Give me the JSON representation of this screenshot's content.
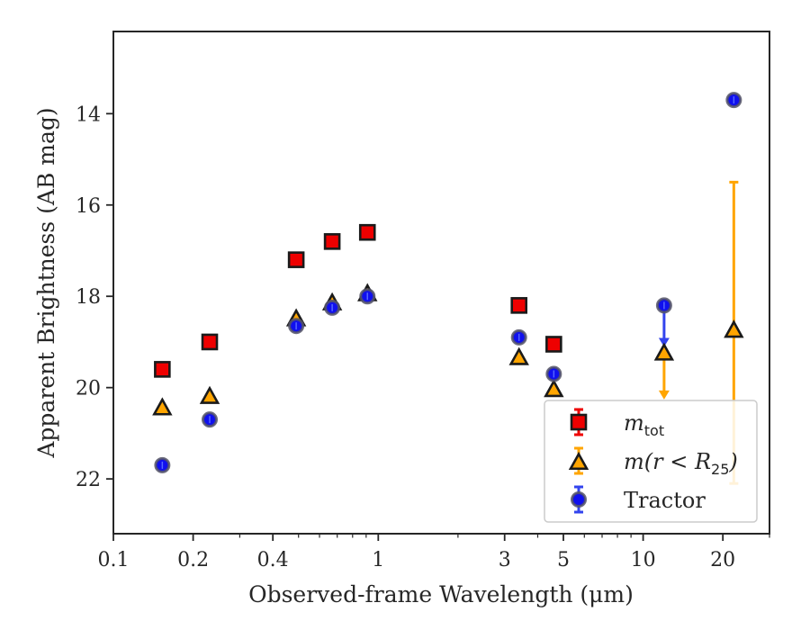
{
  "chart_data": {
    "type": "scatter",
    "title": "",
    "xlabel": "Observed-frame Wavelength (μm)",
    "ylabel": "Apparent Brightness (AB mag)",
    "xscale": "log",
    "xlim": [
      0.1,
      30
    ],
    "ylim": [
      23.2,
      12.2
    ],
    "y_inverted": true,
    "x_ticks": [
      {
        "value": 0.1,
        "label": "0.1"
      },
      {
        "value": 0.2,
        "label": "0.2"
      },
      {
        "value": 0.4,
        "label": "0.4"
      },
      {
        "value": 1,
        "label": "1"
      },
      {
        "value": 3,
        "label": "3"
      },
      {
        "value": 5,
        "label": "5"
      },
      {
        "value": 10,
        "label": "10"
      },
      {
        "value": 20,
        "label": "20"
      }
    ],
    "y_ticks": [
      {
        "value": 14,
        "label": "14"
      },
      {
        "value": 16,
        "label": "16"
      },
      {
        "value": 18,
        "label": "18"
      },
      {
        "value": 20,
        "label": "20"
      },
      {
        "value": 22,
        "label": "22"
      }
    ],
    "legend_position": "lower-right",
    "series": [
      {
        "name": "m_tot",
        "legend_main": "m",
        "legend_sub": "tot",
        "marker": "square",
        "color": "#ee0000",
        "errcolor": "#ee0000",
        "points": [
          {
            "x": 0.153,
            "y": 19.6
          },
          {
            "x": 0.231,
            "y": 19.0
          },
          {
            "x": 0.49,
            "y": 17.2
          },
          {
            "x": 0.67,
            "y": 16.8
          },
          {
            "x": 0.91,
            "y": 16.6
          },
          {
            "x": 3.4,
            "y": 18.2
          },
          {
            "x": 4.6,
            "y": 19.05
          }
        ]
      },
      {
        "name": "m(r < R25)",
        "legend_main": "m(r < R",
        "legend_sub": "25",
        "legend_tail": ")",
        "marker": "triangle",
        "color": "#ffa500",
        "errcolor": "#ffa500",
        "points": [
          {
            "x": 0.153,
            "y": 20.45
          },
          {
            "x": 0.231,
            "y": 20.2
          },
          {
            "x": 0.49,
            "y": 18.5
          },
          {
            "x": 0.67,
            "y": 18.15
          },
          {
            "x": 0.91,
            "y": 17.95
          },
          {
            "x": 3.4,
            "y": 19.35
          },
          {
            "x": 4.6,
            "y": 20.05
          },
          {
            "x": 12.0,
            "y": 19.25,
            "upper_limit_to": 20.2
          },
          {
            "x": 22.0,
            "y": 18.75,
            "err_low": 15.5,
            "err_high": 22.1
          }
        ]
      },
      {
        "name": "Tractor",
        "legend_main": "Tractor",
        "marker": "circle",
        "color": "#1010ee",
        "errcolor": "#3344ee",
        "points": [
          {
            "x": 0.153,
            "y": 21.7
          },
          {
            "x": 0.231,
            "y": 20.7
          },
          {
            "x": 0.49,
            "y": 18.65
          },
          {
            "x": 0.67,
            "y": 18.25
          },
          {
            "x": 0.91,
            "y": 18.0
          },
          {
            "x": 3.4,
            "y": 18.9
          },
          {
            "x": 4.6,
            "y": 19.7
          },
          {
            "x": 12.0,
            "y": 18.2,
            "upper_limit_to": 19.05
          },
          {
            "x": 22.0,
            "y": 13.7
          }
        ]
      }
    ]
  }
}
